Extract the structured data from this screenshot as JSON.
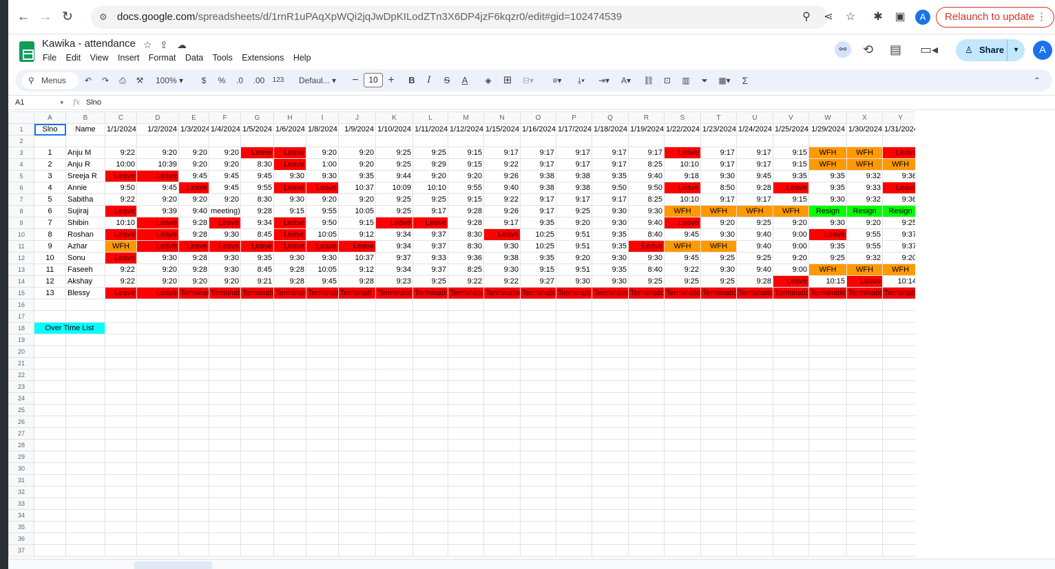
{
  "browser": {
    "url_domain": "docs.google.com",
    "url_path": "/spreadsheets/d/1rnR1uPAqXpWQi2jqJwDpKILodZTn3X6DP4jzF6kqzr0/edit#gid=102474539",
    "relaunch_label": "Relaunch to update",
    "avatar_letter": "A"
  },
  "app": {
    "title": "Kawika - attendance",
    "menus": [
      "File",
      "Edit",
      "View",
      "Insert",
      "Format",
      "Data",
      "Tools",
      "Extensions",
      "Help"
    ],
    "share_label": "Share",
    "avatar_letter": "A"
  },
  "toolbar": {
    "menus_label": "Menus",
    "zoom": "100%",
    "currency": "$",
    "percent": "%",
    "dec_dec": ".0",
    "dec_inc": ".00",
    "number_format": "123",
    "font": "Defaul...",
    "font_size": "10"
  },
  "formula_bar": {
    "cell_ref": "A1",
    "value": "Slno"
  },
  "sheet": {
    "columns": [
      "A",
      "B",
      "C",
      "D",
      "E",
      "F",
      "G",
      "H",
      "I",
      "J",
      "K",
      "L",
      "M",
      "N",
      "O",
      "P",
      "Q",
      "R",
      "S",
      "T",
      "U",
      "V",
      "W",
      "X",
      "Y"
    ],
    "header_row": [
      "Slno",
      "Name",
      "1/1/2024",
      "1/2/2024",
      "1/3/2024",
      "1/4/2024",
      "1/5/2024",
      "1/6/2024",
      "1/8/2024",
      "1/9/2024",
      "1/10/2024",
      "1/11/2024",
      "1/12/2024",
      "1/15/2024",
      "1/16/2024",
      "1/17/2024",
      "1/18/2024",
      "1/19/2024",
      "1/22/2024",
      "1/23/2024",
      "1/24/2024",
      "1/25/2024",
      "1/29/2024",
      "1/30/2024",
      "1/31/2024"
    ],
    "employees": [
      [
        "1",
        "Anju M",
        "9:22",
        "9:20",
        "9:20",
        "9:20",
        "Leave",
        "Leave",
        "9:20",
        "9:20",
        "9:25",
        "9:25",
        "9:15",
        "9:17",
        "9:17",
        "9:17",
        "9:17",
        "9:17",
        "Leave",
        "9:17",
        "9:17",
        "9:15",
        "WFH",
        "WFH",
        "Leave"
      ],
      [
        "2",
        "Anju R",
        "10:00",
        "10:39",
        "9:20",
        "9:20",
        "8:30",
        "Leave",
        "1:00",
        "9:20",
        "9:25",
        "9:29",
        "9:15",
        "9:22",
        "9:17",
        "9:17",
        "9:17",
        "8:25",
        "10:10",
        "9:17",
        "9:17",
        "9:15",
        "WFH",
        "WFH",
        "WFH"
      ],
      [
        "3",
        "Sreeja R",
        "Leave",
        "Leave",
        "9:45",
        "9:45",
        "9:45",
        "9:30",
        "9:30",
        "9:35",
        "9:44",
        "9:20",
        "9:20",
        "9:26",
        "9:38",
        "9:38",
        "9:35",
        "9:40",
        "9:18",
        "9:30",
        "9:45",
        "9:35",
        "9:35",
        "9:32",
        "9:36"
      ],
      [
        "4",
        "Annie",
        "9:50",
        "9:45",
        "Leave",
        "9:45",
        "9:55",
        "Leave",
        "Leave",
        "10:37",
        "10:09",
        "10:10",
        "9:55",
        "9:40",
        "9:38",
        "9:38",
        "9:50",
        "9:50",
        "Leave",
        "8:50",
        "9:28",
        "Leave",
        "9:35",
        "9:33",
        "Leave"
      ],
      [
        "5",
        "Sabitha",
        "9:22",
        "9:20",
        "9:20",
        "9:20",
        "8:30",
        "9:30",
        "9:20",
        "9:20",
        "9:25",
        "9:25",
        "9:15",
        "9:22",
        "9:17",
        "9:17",
        "9:17",
        "8:25",
        "10:10",
        "9:17",
        "9:17",
        "9:15",
        "9:30",
        "9:32",
        "9:36"
      ],
      [
        "6",
        "Sujiraj",
        "Leave",
        "9:39",
        "9:40",
        "meeting)",
        "9:28",
        "9:15",
        "9:55",
        "10:05",
        "9:25",
        "9:17",
        "9:28",
        "9:26",
        "9:17",
        "9:25",
        "9:30",
        "9:30",
        "WFH",
        "WFH",
        "WFH",
        "WFH",
        "Resign",
        "Resign",
        "Resign"
      ],
      [
        "7",
        "Shibin",
        "10:10",
        "Leave",
        "9:28",
        "Leave",
        "9:34",
        "Leave",
        "9:50",
        "9:15",
        "Leave",
        "Leave",
        "9:28",
        "9:17",
        "9:35",
        "9:20",
        "9:30",
        "9:40",
        "Leave",
        "9:20",
        "9:25",
        "9:20",
        "9:30",
        "9:20",
        "9:25"
      ],
      [
        "8",
        "Roshan",
        "Leave",
        "Leave",
        "9:28",
        "9:30",
        "8:45",
        "Leave",
        "10:05",
        "9:12",
        "9:34",
        "9:37",
        "8:30",
        "Leave",
        "10:25",
        "9:51",
        "9:35",
        "8:40",
        "9:45",
        "9:30",
        "9:40",
        "9:00",
        "Leave",
        "9:55",
        "9:37"
      ],
      [
        "9",
        "Azhar",
        "WFH",
        "Leave",
        "Leave",
        "Leave",
        "Leave",
        "Leave",
        "Leave",
        "Leave",
        "9:34",
        "9:37",
        "8:30",
        "9:30",
        "10:25",
        "9:51",
        "9:35",
        "Leave",
        "WFH",
        "WFH",
        "9:40",
        "9:00",
        "9:35",
        "9:55",
        "9:37"
      ],
      [
        "10",
        "Sonu",
        "Leave",
        "9:30",
        "9:28",
        "9:30",
        "9:35",
        "9:30",
        "9:30",
        "10:37",
        "9:37",
        "9:33",
        "9:36",
        "9:38",
        "9:35",
        "9:20",
        "9:30",
        "9:30",
        "9:45",
        "9:25",
        "9:25",
        "9:20",
        "9:25",
        "9:32",
        "9:20"
      ],
      [
        "11",
        "Faseeh",
        "9:22",
        "9:20",
        "9:28",
        "9:30",
        "8:45",
        "9:28",
        "10:05",
        "9:12",
        "9:34",
        "9:37",
        "8:25",
        "9:30",
        "9:15",
        "9:51",
        "9:35",
        "8:40",
        "9:22",
        "9:30",
        "9:40",
        "9:00",
        "WFH",
        "WFH",
        "WFH"
      ],
      [
        "12",
        "Akshay",
        "9:22",
        "9:20",
        "9:20",
        "9:20",
        "9:21",
        "9:28",
        "9:45",
        "9:28",
        "9:23",
        "9:25",
        "9:22",
        "9:22",
        "9:27",
        "9:30",
        "9:30",
        "9:25",
        "9:25",
        "9:25",
        "9:28",
        "Leave",
        "10:15",
        "Leave",
        "10:14"
      ],
      [
        "13",
        "Blessy",
        "Leave",
        "Leave",
        "Termination",
        "Terminat",
        "Terminati",
        "Terminati",
        "Terminati",
        "Terminati",
        "Terminatio",
        "Terminatio",
        "Terminatio",
        "Termination",
        "Terminatio",
        "Terminatio",
        "Terminatio",
        "Terminatio",
        "Terminatio",
        "Terminatio",
        "Terminatio",
        "Terminatio",
        "Terminatio",
        "Terminatio",
        "Terminatio"
      ]
    ],
    "overtime_label": "Over Time List",
    "total_rows": 37,
    "colors": {
      "leave": "#ff0000",
      "wfh": "#ff9900",
      "resign": "#00ff00",
      "overtime": "#00ffff"
    }
  }
}
